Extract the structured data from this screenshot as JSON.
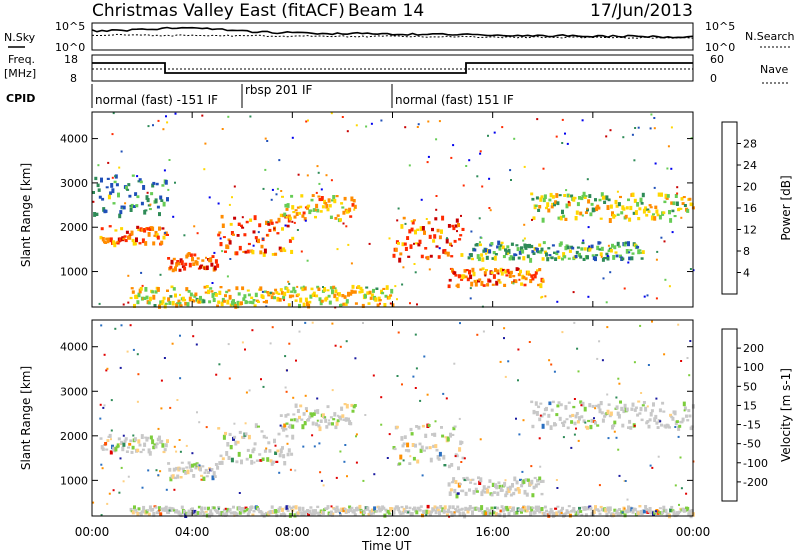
{
  "header": {
    "title": "Christmas Valley East (fitACF)",
    "beam": "Beam 14",
    "date": "17/Jun/2013"
  },
  "top_panels": {
    "nsky_label": "N.Sky",
    "nsearch_label": "N.Search",
    "noise_ticks_left": [
      "10^5",
      "10^0"
    ],
    "noise_ticks_right": [
      "10^5",
      "10^0"
    ],
    "freq_label_1": "Freq.",
    "freq_label_2": "[MHz]",
    "freq_ticks": [
      "18",
      "8"
    ],
    "nave_ticks": [
      "60",
      "0"
    ],
    "nave_label": "Nave",
    "cpid_label": "CPID",
    "cpid_segments": [
      {
        "label": "normal (fast) -151 IF",
        "start_hour": 0
      },
      {
        "label": "rbsp 201 IF",
        "start_hour": 6.2
      },
      {
        "label": "normal (fast) 151 IF",
        "start_hour": 12
      }
    ]
  },
  "chart_data": [
    {
      "type": "heatmap",
      "name": "power",
      "ylabel": "Slant Range [km]",
      "yticks": [
        "1000",
        "2000",
        "3000",
        "4000"
      ],
      "ylim": [
        200,
        4600
      ],
      "xlim": [
        0,
        24
      ],
      "colorbar": {
        "label": "Power [dB]",
        "ticks": [
          "4",
          "8",
          "12",
          "16",
          "20",
          "24",
          "28"
        ],
        "colors": [
          "#0000ee",
          "#1f4fb8",
          "#2e8b57",
          "#66cc55",
          "#ffd700",
          "#ff8c00",
          "#ff2a00",
          "#c80000"
        ]
      },
      "bands": [
        {
          "t0": 0.3,
          "t1": 3.0,
          "r0": 1650,
          "r1": 2050,
          "level": 0.75
        },
        {
          "t0": 3.0,
          "t1": 5.0,
          "r0": 1050,
          "r1": 1450,
          "level": 0.85
        },
        {
          "t0": 5.0,
          "t1": 8.0,
          "r0": 1400,
          "r1": 2300,
          "level": 0.8
        },
        {
          "t0": 7.5,
          "t1": 10.5,
          "r0": 2200,
          "r1": 2750,
          "level": 0.6
        },
        {
          "t0": 12.0,
          "t1": 14.8,
          "r0": 1300,
          "r1": 2300,
          "level": 0.8
        },
        {
          "t0": 14.2,
          "t1": 18.0,
          "r0": 700,
          "r1": 1100,
          "level": 0.75
        },
        {
          "t0": 17.5,
          "t1": 24.0,
          "r0": 2200,
          "r1": 2800,
          "level": 0.5
        },
        {
          "t0": 15.0,
          "t1": 22.0,
          "r0": 1300,
          "r1": 1700,
          "level": 0.35
        },
        {
          "t0": 0.0,
          "t1": 3.0,
          "r0": 2300,
          "r1": 3200,
          "level": 0.3
        },
        {
          "t0": 1.5,
          "t1": 12.0,
          "r0": 250,
          "r1": 700,
          "level": 0.55
        }
      ]
    },
    {
      "type": "heatmap",
      "name": "velocity",
      "ylabel": "Slant Range [km]",
      "yticks": [
        "1000",
        "2000",
        "3000",
        "4000"
      ],
      "ylim": [
        200,
        4600
      ],
      "xlim": [
        0,
        24
      ],
      "colorbar": {
        "label": "Velocity [m s-1]",
        "ticks": [
          "200",
          "100",
          "50",
          "15",
          "-15",
          "-50",
          "-100",
          "-200"
        ],
        "colors": [
          "#1a1aa0",
          "#2a6fc0",
          "#2e8b57",
          "#7ccd3c",
          "#c8c8c8",
          "#ffd080",
          "#ff9000",
          "#ff5000",
          "#e00000"
        ]
      },
      "bands": [
        {
          "t0": 0.3,
          "t1": 3.0,
          "r0": 1650,
          "r1": 2050,
          "level": 0.5
        },
        {
          "t0": 3.0,
          "t1": 5.0,
          "r0": 1050,
          "r1": 1450,
          "level": 0.5
        },
        {
          "t0": 5.0,
          "t1": 8.0,
          "r0": 1400,
          "r1": 2300,
          "level": 0.5
        },
        {
          "t0": 7.5,
          "t1": 10.5,
          "r0": 2200,
          "r1": 2750,
          "level": 0.5
        },
        {
          "t0": 12.0,
          "t1": 14.8,
          "r0": 1300,
          "r1": 2300,
          "level": 0.5
        },
        {
          "t0": 14.2,
          "t1": 18.0,
          "r0": 700,
          "r1": 1100,
          "level": 0.5
        },
        {
          "t0": 17.5,
          "t1": 24.0,
          "r0": 2200,
          "r1": 2800,
          "level": 0.5
        },
        {
          "t0": 1.5,
          "t1": 24.0,
          "r0": 250,
          "r1": 450,
          "level": 0.3
        }
      ]
    }
  ],
  "x_axis": {
    "label": "Time UT",
    "ticks": [
      "00:00",
      "04:00",
      "08:00",
      "12:00",
      "16:00",
      "20:00",
      "00:00"
    ],
    "hours": [
      0,
      4,
      8,
      12,
      16,
      20,
      24
    ]
  }
}
